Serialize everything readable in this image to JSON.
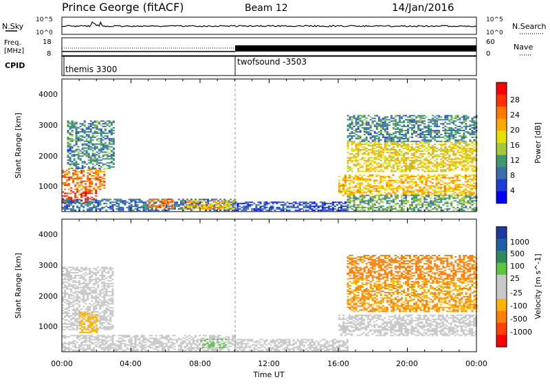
{
  "header": {
    "title": "Prince George (fitACF)",
    "beam": "Beam 12",
    "date": "14/Jan/2016"
  },
  "top_panels": {
    "nsky_label": "N.Sky",
    "nsky_ticks": [
      "10^5",
      "10^0"
    ],
    "nsearch_label": "N.Search",
    "nsearch_ticks": [
      "10^5",
      "10^0"
    ],
    "freq_label_1": "Freq.",
    "freq_label_2": "[MHz]",
    "freq_ticks": [
      "18",
      "8"
    ],
    "nave_label": "Nave",
    "nave_ticks": [
      "60",
      "0"
    ],
    "cpid_label": "CPID",
    "cpid_entries": [
      {
        "name": "themis 3300",
        "start_hour": 0
      },
      {
        "name": "twofsound -3503",
        "start_hour": 10
      }
    ]
  },
  "power_panel": {
    "ylabel": "Slant Range [km]",
    "yticks": [
      "4000",
      "3000",
      "2000",
      "1000"
    ],
    "colorbar_label": "Power [dB]",
    "colorbar_ticks": [
      "28",
      "24",
      "20",
      "16",
      "12",
      "8",
      "4"
    ],
    "colorbar_colors": [
      "#ff0000",
      "#ff3300",
      "#ff7a00",
      "#ffa800",
      "#e6e000",
      "#a8c83c",
      "#3c9a6e",
      "#3a6fa8",
      "#1e3cd6",
      "#0000ff"
    ]
  },
  "velocity_panel": {
    "ylabel": "Slant Range [km]",
    "yticks": [
      "4000",
      "3000",
      "2000",
      "1000"
    ],
    "colorbar_label": "Velocity [m s^-1]",
    "colorbar_ticks": [
      "1000",
      "500",
      "100",
      "25",
      "-25",
      "-100",
      "-500",
      "-1000"
    ],
    "colorbar_colors": [
      "#1a3aa0",
      "#1f5fa8",
      "#2e8a5a",
      "#5cc83c",
      "#c8c8c8",
      "#c8c8c8",
      "#ffb400",
      "#ff8000",
      "#ff4000",
      "#ff0000"
    ]
  },
  "xaxis": {
    "label": "Time UT",
    "ticks": [
      "00:00",
      "04:00",
      "08:00",
      "12:00",
      "16:00",
      "20:00",
      "00:00"
    ]
  },
  "chart_data": {
    "type": "heatmap",
    "title": "Prince George (fitACF)",
    "xlabel": "Time UT",
    "ylabel": "Slant Range [km]",
    "xlim_hours": [
      0,
      24
    ],
    "ylim_km": [
      180,
      4600
    ],
    "power_scale_db": [
      0,
      32
    ],
    "velocity_scale_ms": [
      -1000,
      1000
    ],
    "power_echo_regions": [
      {
        "t0": 0.0,
        "t1": 2.0,
        "r0": 450,
        "r1": 900,
        "value_db": 28
      },
      {
        "t0": 0.0,
        "t1": 2.5,
        "r0": 900,
        "r1": 1600,
        "value_db": 24
      },
      {
        "t0": 0.3,
        "t1": 3.0,
        "r0": 1600,
        "r1": 3200,
        "value_db": 10
      },
      {
        "t0": 0.0,
        "t1": 10.0,
        "r0": 200,
        "r1": 600,
        "value_db": 8
      },
      {
        "t0": 5.0,
        "t1": 6.5,
        "r0": 300,
        "r1": 600,
        "value_db": 24
      },
      {
        "t0": 7.0,
        "t1": 10.0,
        "r0": 250,
        "r1": 550,
        "value_db": 20
      },
      {
        "t0": 10.0,
        "t1": 16.5,
        "r0": 200,
        "r1": 500,
        "value_db": 6
      },
      {
        "t0": 16.0,
        "t1": 24.0,
        "r0": 700,
        "r1": 1400,
        "value_db": 20
      },
      {
        "t0": 16.5,
        "t1": 24.0,
        "r0": 1500,
        "r1": 2500,
        "value_db": 18
      },
      {
        "t0": 16.5,
        "t1": 24.0,
        "r0": 2500,
        "r1": 3400,
        "value_db": 10
      },
      {
        "t0": 16.5,
        "t1": 24.0,
        "r0": 200,
        "r1": 700,
        "value_db": 12
      }
    ],
    "velocity_echo_regions": [
      {
        "t0": 0.0,
        "t1": 3.0,
        "r0": 900,
        "r1": 3000,
        "value_ms": 0
      },
      {
        "t0": 1.0,
        "t1": 2.0,
        "r0": 800,
        "r1": 1500,
        "value_ms": -300
      },
      {
        "t0": 0.0,
        "t1": 10.0,
        "r0": 200,
        "r1": 700,
        "value_ms": 0
      },
      {
        "t0": 8.0,
        "t1": 9.5,
        "r0": 300,
        "r1": 600,
        "value_ms": 200
      },
      {
        "t0": 10.0,
        "t1": 16.5,
        "r0": 200,
        "r1": 600,
        "value_ms": -100
      },
      {
        "t0": 16.0,
        "t1": 24.0,
        "r0": 700,
        "r1": 1400,
        "value_ms": 0
      },
      {
        "t0": 16.5,
        "t1": 24.0,
        "r0": 1500,
        "r1": 2600,
        "value_ms": -400
      },
      {
        "t0": 16.5,
        "t1": 24.0,
        "r0": 2600,
        "r1": 3400,
        "value_ms": -500
      }
    ],
    "cpid_change_hour": 10
  }
}
